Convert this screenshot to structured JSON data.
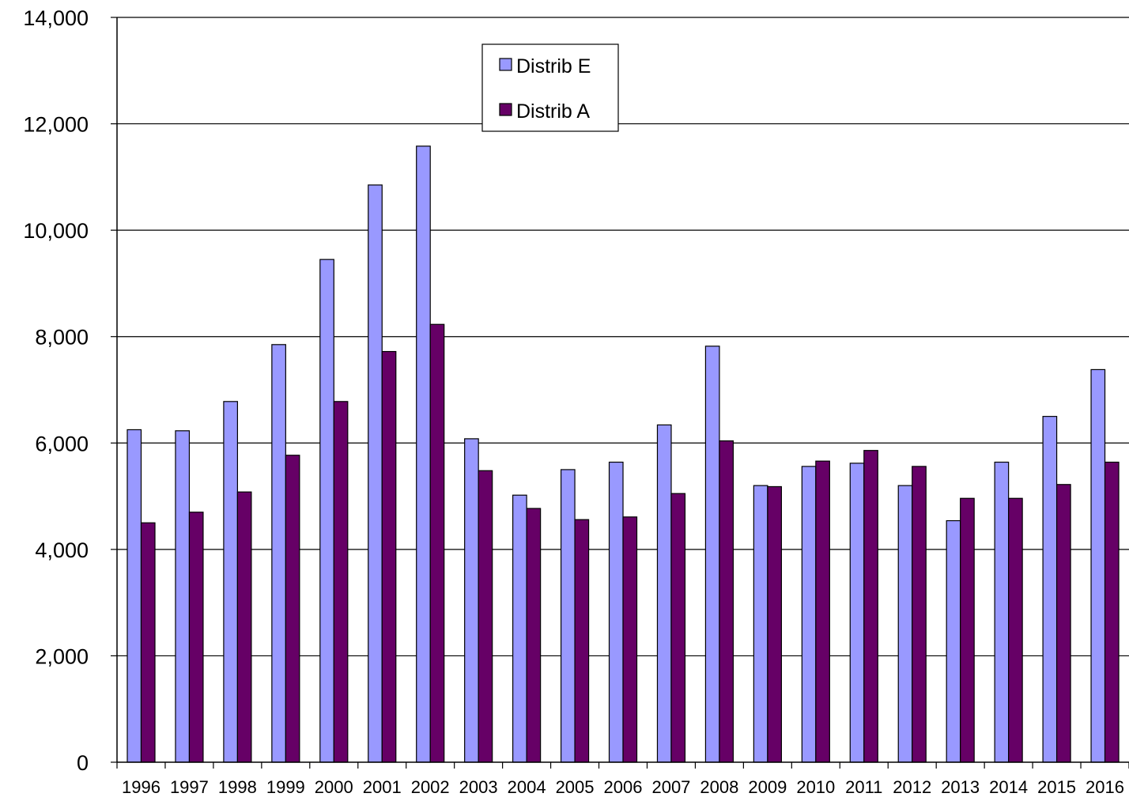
{
  "chart_data": {
    "type": "bar",
    "title": "",
    "xlabel": "",
    "ylabel": "",
    "ylim": [
      0,
      14000
    ],
    "yticks": [
      0,
      2000,
      4000,
      6000,
      8000,
      10000,
      12000,
      14000
    ],
    "ytick_labels": [
      "0",
      "2,000",
      "4,000",
      "6,000",
      "8,000",
      "10,000",
      "12,000",
      "14,000"
    ],
    "grid": "horizontal",
    "legend_position": "top-center",
    "categories": [
      "1996",
      "1997",
      "1998",
      "1999",
      "2000",
      "2001",
      "2002",
      "2003",
      "2004",
      "2005",
      "2006",
      "2007",
      "2008",
      "2009",
      "2010",
      "2011",
      "2012",
      "2013",
      "2014",
      "2015",
      "2016"
    ],
    "series": [
      {
        "name": "Distrib E",
        "color": "#9999ff",
        "values": [
          6250,
          6230,
          6780,
          7850,
          9450,
          10850,
          11580,
          6080,
          5020,
          5500,
          5640,
          6340,
          7820,
          5200,
          5560,
          5620,
          5200,
          4540,
          5640,
          6500,
          7380
        ]
      },
      {
        "name": "Distrib A",
        "color": "#660066",
        "values": [
          4500,
          4700,
          5080,
          5770,
          6780,
          7720,
          8230,
          5480,
          4770,
          4560,
          4610,
          5050,
          6040,
          5180,
          5660,
          5860,
          5560,
          4960,
          4960,
          5220,
          5640
        ]
      }
    ]
  }
}
